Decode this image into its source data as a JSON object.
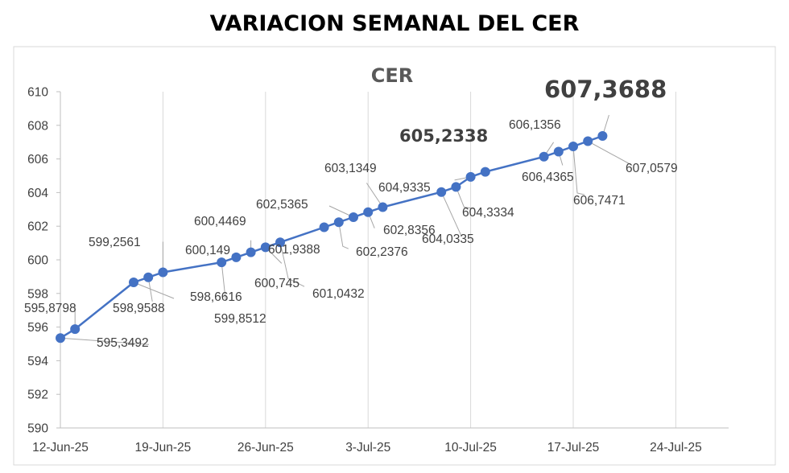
{
  "title": "VARIACION SEMANAL DEL CER",
  "chart_data": {
    "type": "line",
    "title": "CER",
    "xlabel": "",
    "ylabel": "",
    "ylim": [
      590,
      610
    ],
    "yticks": [
      590,
      592,
      594,
      596,
      598,
      600,
      602,
      604,
      606,
      608,
      610
    ],
    "xlim": [
      "2025-06-12",
      "2025-07-27"
    ],
    "xticks": [
      "12-Jun-25",
      "19-Jun-25",
      "26-Jun-25",
      "3-Jul-25",
      "10-Jul-25",
      "17-Jul-25",
      "24-Jul-25"
    ],
    "grid": "vertical",
    "legend": "none",
    "line_color": "#4472C4",
    "series": [
      {
        "points": [
          {
            "date": "2025-06-12",
            "value": 595.3492,
            "label": "595,3492"
          },
          {
            "date": "2025-06-13",
            "value": 595.8798,
            "label": "595,8798"
          },
          {
            "date": "2025-06-17",
            "value": 598.6616,
            "label": "598,6616"
          },
          {
            "date": "2025-06-18",
            "value": 598.9588,
            "label": "598,9588"
          },
          {
            "date": "2025-06-19",
            "value": 599.2561,
            "label": "599,2561"
          },
          {
            "date": "2025-06-23",
            "value": 599.8512,
            "label": "599,8512"
          },
          {
            "date": "2025-06-24",
            "value": 600.149,
            "label": "600,149"
          },
          {
            "date": "2025-06-25",
            "value": 600.4469,
            "label": "600,4469"
          },
          {
            "date": "2025-06-26",
            "value": 600.745,
            "label": "600,745"
          },
          {
            "date": "2025-06-27",
            "value": 601.0432,
            "label": "601,0432"
          },
          {
            "date": "2025-06-30",
            "value": 601.9388,
            "label": "601,9388"
          },
          {
            "date": "2025-07-01",
            "value": 602.2376,
            "label": "602,2376"
          },
          {
            "date": "2025-07-02",
            "value": 602.5365,
            "label": "602,5365"
          },
          {
            "date": "2025-07-03",
            "value": 602.8356,
            "label": "602,8356"
          },
          {
            "date": "2025-07-04",
            "value": 603.1349,
            "label": "603,1349"
          },
          {
            "date": "2025-07-08",
            "value": 604.0335,
            "label": "604,0335"
          },
          {
            "date": "2025-07-09",
            "value": 604.3334,
            "label": "604,3334"
          },
          {
            "date": "2025-07-10",
            "value": 604.9335,
            "label": "604,9335"
          },
          {
            "date": "2025-07-11",
            "value": 605.2338,
            "label": "605,2338",
            "emphasis": "medium"
          },
          {
            "date": "2025-07-15",
            "value": 606.1356,
            "label": "606,1356"
          },
          {
            "date": "2025-07-16",
            "value": 606.4365,
            "label": "606,4365"
          },
          {
            "date": "2025-07-17",
            "value": 606.7471,
            "label": "606,7471"
          },
          {
            "date": "2025-07-18",
            "value": 607.0579,
            "label": "607,0579"
          },
          {
            "date": "2025-07-19",
            "value": 607.3688,
            "label": "607,3688",
            "emphasis": "large"
          }
        ]
      }
    ]
  }
}
